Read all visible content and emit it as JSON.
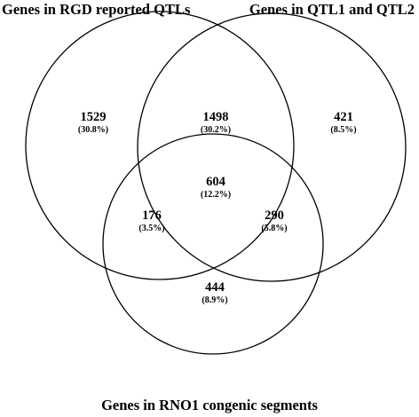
{
  "sets": {
    "a": {
      "label": "Genes in RGD reported QTLs"
    },
    "b": {
      "label": "Genes in QTL1 and QTL2"
    },
    "c": {
      "label": "Genes in RNO1 congenic segments"
    }
  },
  "regions": {
    "a_only": {
      "count": "1529",
      "percent": "(30.8%)"
    },
    "ab_only": {
      "count": "1498",
      "percent": "(30.2%)"
    },
    "b_only": {
      "count": "421",
      "percent": "(8.5%)"
    },
    "abc": {
      "count": "604",
      "percent": "(12.2%)"
    },
    "ac_only": {
      "count": "176",
      "percent": "(3.5%)"
    },
    "bc_only": {
      "count": "290",
      "percent": "(5.8%)"
    },
    "c_only": {
      "count": "444",
      "percent": "(8.9%)"
    }
  },
  "colors": {
    "stroke": "#000000",
    "text": "#000000",
    "background": "#ffffff"
  }
}
